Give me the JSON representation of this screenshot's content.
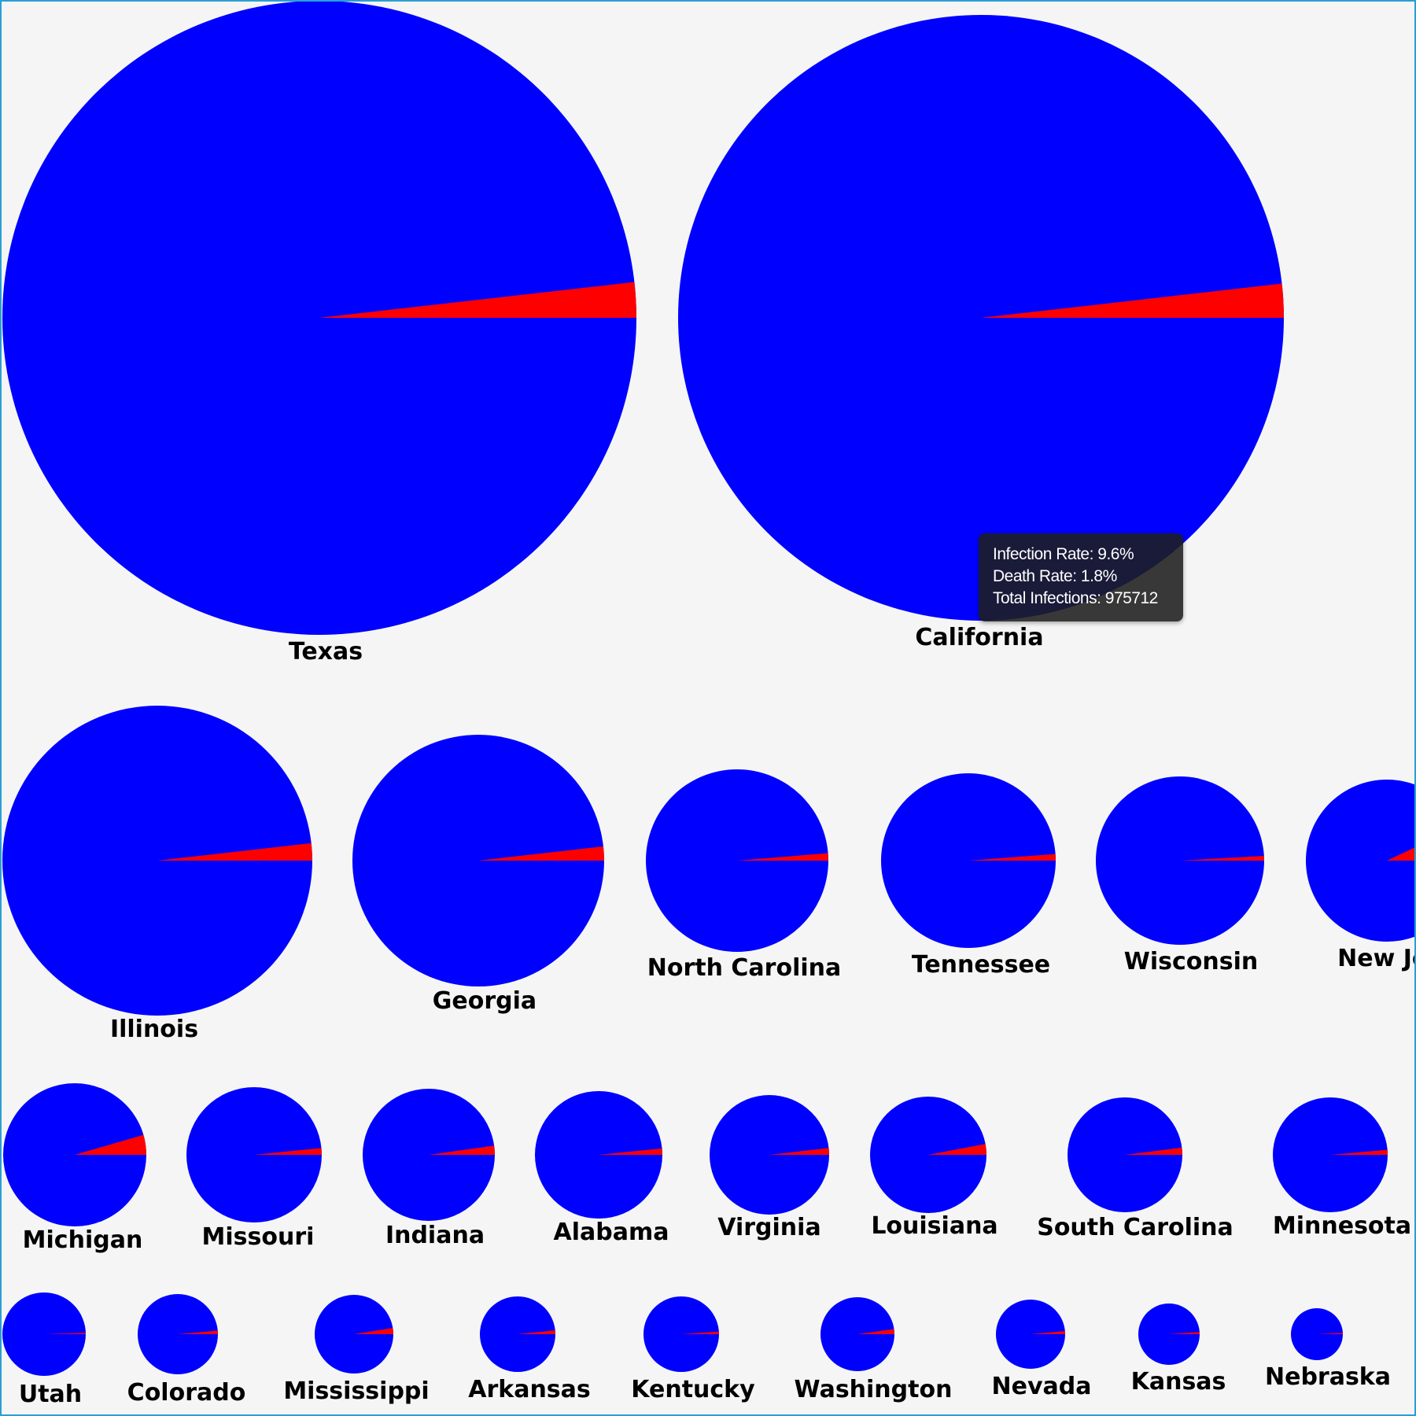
{
  "chart_data": {
    "type": "pie",
    "colors": {
      "remaining": "#0000ff",
      "deaths": "#ff0000"
    },
    "states": [
      {
        "name": "Texas",
        "share": 0.018
      },
      {
        "name": "California",
        "share": 0.018
      },
      {
        "name": "Illinois",
        "share": 0.018
      },
      {
        "name": "Georgia",
        "share": 0.018
      },
      {
        "name": "North Carolina",
        "share": 0.013
      },
      {
        "name": "Tennessee",
        "share": 0.012
      },
      {
        "name": "Wisconsin",
        "share": 0.009
      },
      {
        "name": "New Jersey",
        "share": 0.07
      },
      {
        "name": "Michigan",
        "share": 0.045
      },
      {
        "name": "Missouri",
        "share": 0.016
      },
      {
        "name": "Indiana",
        "share": 0.022
      },
      {
        "name": "Alabama",
        "share": 0.016
      },
      {
        "name": "Virginia",
        "share": 0.018
      },
      {
        "name": "Louisiana",
        "share": 0.03
      },
      {
        "name": "South Carolina",
        "share": 0.02
      },
      {
        "name": "Minnesota",
        "share": 0.014
      },
      {
        "name": "Utah",
        "share": 0.005
      },
      {
        "name": "Colorado",
        "share": 0.014
      },
      {
        "name": "Mississippi",
        "share": 0.025
      },
      {
        "name": "Arkansas",
        "share": 0.016
      },
      {
        "name": "Kentucky",
        "share": 0.011
      },
      {
        "name": "Washington",
        "share": 0.022
      },
      {
        "name": "Nevada",
        "share": 0.014
      },
      {
        "name": "Kansas",
        "share": 0.011
      },
      {
        "name": "Nebraska",
        "share": 0.008
      }
    ]
  },
  "tooltip": {
    "state": "California",
    "infection_rate_label": "Infection Rate:",
    "infection_rate": "9.6%",
    "death_rate_label": "Death Rate:",
    "death_rate": "1.8%",
    "total_infections_label": "Total Infections:",
    "total_infections": "975712"
  }
}
